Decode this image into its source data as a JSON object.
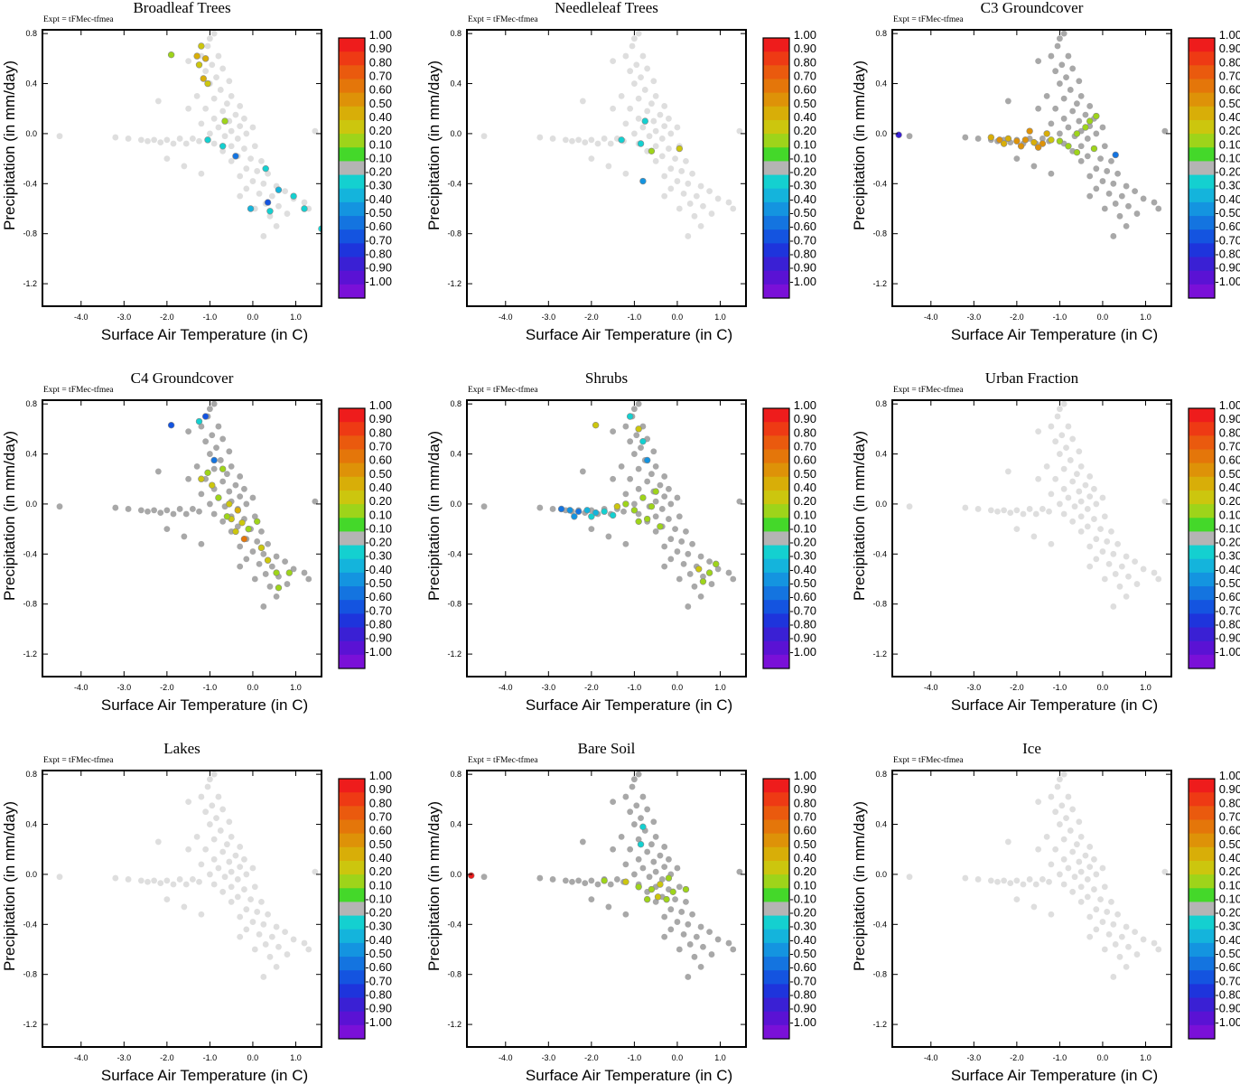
{
  "chart_data": {
    "type": "scatter",
    "figure": "3x3 panel grid of scatter plots colored by correlation value",
    "common": {
      "expt_label": "Expt = tFMec-tfmea",
      "xlabel": "Surface Air Temperature (in C)",
      "ylabel": "Precipitation (in mm/day)",
      "xlim": [
        -4.9,
        1.6
      ],
      "ylim": [
        -1.38,
        0.83
      ],
      "xticks": [
        -4.0,
        -3.0,
        -2.0,
        -1.0,
        0.0,
        1.0
      ],
      "xtick_labels": [
        "-4.0",
        "-3.0",
        "-2.0",
        "-1.0",
        "0.0",
        "1.0"
      ],
      "yticks": [
        0.8,
        0.4,
        0.0,
        -0.4,
        -0.8,
        -1.2
      ],
      "ytick_labels": [
        "0.8",
        "0.4",
        "0.0",
        "-0.4",
        "-0.8",
        "-1.2"
      ],
      "colorbar": {
        "labels": [
          "1.00",
          "0.90",
          "0.80",
          "0.70",
          "0.60",
          "0.50",
          "0.40",
          "0.20",
          "0.10",
          "-0.10",
          "-0.20",
          "-0.30",
          "-0.40",
          "-0.50",
          "-0.60",
          "-0.70",
          "-0.80",
          "-0.90",
          "-1.00"
        ],
        "colors": [
          "#ee1c1c",
          "#ee3a14",
          "#ea5a0e",
          "#e4760a",
          "#de9208",
          "#d8ae08",
          "#ccc60e",
          "#9ed41a",
          "#44d82a",
          "#b4b4b4",
          "#14d0d0",
          "#14b4dc",
          "#1494e0",
          "#1474e0",
          "#1454e0",
          "#1e34dc",
          "#3a20d4",
          "#5a12d4",
          "#7a10d8"
        ]
      }
    },
    "base_cloud": [
      {
        "x": -1.0,
        "y": 0.76
      },
      {
        "x": -0.9,
        "y": 0.8
      },
      {
        "x": -1.05,
        "y": 0.7
      },
      {
        "x": -0.8,
        "y": 0.62
      },
      {
        "x": -1.2,
        "y": 0.62
      },
      {
        "x": -0.95,
        "y": 0.55
      },
      {
        "x": -0.7,
        "y": 0.52
      },
      {
        "x": -1.1,
        "y": 0.5
      },
      {
        "x": -0.85,
        "y": 0.45
      },
      {
        "x": -0.55,
        "y": 0.42
      },
      {
        "x": -1.0,
        "y": 0.4
      },
      {
        "x": -0.75,
        "y": 0.35
      },
      {
        "x": -1.3,
        "y": 0.3
      },
      {
        "x": -0.5,
        "y": 0.3
      },
      {
        "x": -0.9,
        "y": 0.28
      },
      {
        "x": -0.6,
        "y": 0.24
      },
      {
        "x": -0.3,
        "y": 0.22
      },
      {
        "x": -1.1,
        "y": 0.2
      },
      {
        "x": -0.7,
        "y": 0.18
      },
      {
        "x": -0.4,
        "y": 0.15
      },
      {
        "x": -0.9,
        "y": 0.12
      },
      {
        "x": -0.2,
        "y": 0.12
      },
      {
        "x": -0.55,
        "y": 0.1
      },
      {
        "x": -1.2,
        "y": 0.08
      },
      {
        "x": -0.3,
        "y": 0.06
      },
      {
        "x": -0.8,
        "y": 0.05
      },
      {
        "x": 0.0,
        "y": 0.05
      },
      {
        "x": -0.5,
        "y": 0.02
      },
      {
        "x": -1.0,
        "y": 0.0
      },
      {
        "x": -0.15,
        "y": 0.0
      },
      {
        "x": -0.65,
        "y": -0.02
      },
      {
        "x": -0.35,
        "y": -0.04
      },
      {
        "x": -1.4,
        "y": -0.04
      },
      {
        "x": -1.7,
        "y": -0.04
      },
      {
        "x": -2.0,
        "y": -0.05
      },
      {
        "x": -2.3,
        "y": -0.05
      },
      {
        "x": -2.6,
        "y": -0.05
      },
      {
        "x": -1.55,
        "y": -0.08
      },
      {
        "x": -1.85,
        "y": -0.08
      },
      {
        "x": -2.15,
        "y": -0.07
      },
      {
        "x": -2.45,
        "y": -0.06
      },
      {
        "x": -1.25,
        "y": -0.06
      },
      {
        "x": -0.9,
        "y": -0.08
      },
      {
        "x": -0.5,
        "y": -0.1
      },
      {
        "x": -0.2,
        "y": -0.12
      },
      {
        "x": 0.05,
        "y": -0.1
      },
      {
        "x": -0.7,
        "y": -0.14
      },
      {
        "x": -0.35,
        "y": -0.18
      },
      {
        "x": -0.05,
        "y": -0.2
      },
      {
        "x": 0.2,
        "y": -0.22
      },
      {
        "x": -0.5,
        "y": -0.22
      },
      {
        "x": -0.15,
        "y": -0.28
      },
      {
        "x": 0.1,
        "y": -0.3
      },
      {
        "x": 0.35,
        "y": -0.32
      },
      {
        "x": -0.3,
        "y": -0.34
      },
      {
        "x": 0.0,
        "y": -0.38
      },
      {
        "x": 0.25,
        "y": -0.4
      },
      {
        "x": 0.55,
        "y": -0.42
      },
      {
        "x": -0.15,
        "y": -0.44
      },
      {
        "x": 0.15,
        "y": -0.48
      },
      {
        "x": 0.45,
        "y": -0.5
      },
      {
        "x": 0.75,
        "y": -0.46
      },
      {
        "x": -0.3,
        "y": -0.5
      },
      {
        "x": 0.3,
        "y": -0.56
      },
      {
        "x": 0.6,
        "y": -0.58
      },
      {
        "x": 0.95,
        "y": -0.52
      },
      {
        "x": 1.2,
        "y": -0.55
      },
      {
        "x": 0.05,
        "y": -0.6
      },
      {
        "x": 0.4,
        "y": -0.66
      },
      {
        "x": 0.8,
        "y": -0.64
      },
      {
        "x": 1.3,
        "y": -0.6
      },
      {
        "x": 0.55,
        "y": -0.74
      },
      {
        "x": 0.25,
        "y": -0.82
      },
      {
        "x": -1.5,
        "y": 0.58
      },
      {
        "x": -2.2,
        "y": 0.26
      },
      {
        "x": -2.0,
        "y": -0.2
      },
      {
        "x": -1.6,
        "y": -0.26
      },
      {
        "x": -1.2,
        "y": -0.32
      },
      {
        "x": -1.5,
        "y": 0.2
      },
      {
        "x": 1.45,
        "y": 0.02
      },
      {
        "x": -4.5,
        "y": -0.02
      },
      {
        "x": -3.2,
        "y": -0.03
      },
      {
        "x": -2.9,
        "y": -0.04
      }
    ],
    "panels": [
      {
        "title": "Broadleaf Trees",
        "points": [
          {
            "x": -1.2,
            "y": 0.7,
            "v": 0.4
          },
          {
            "x": -1.3,
            "y": 0.62,
            "v": 0.45
          },
          {
            "x": -1.1,
            "y": 0.6,
            "v": 0.45
          },
          {
            "x": -1.25,
            "y": 0.55,
            "v": 0.3
          },
          {
            "x": -1.15,
            "y": 0.44,
            "v": 0.45
          },
          {
            "x": -1.05,
            "y": 0.4,
            "v": 0.3
          },
          {
            "x": -1.9,
            "y": 0.63,
            "v": 0.15
          },
          {
            "x": -0.65,
            "y": 0.1,
            "v": 0.15
          },
          {
            "x": -1.05,
            "y": -0.05,
            "v": -0.25
          },
          {
            "x": -0.7,
            "y": -0.1,
            "v": -0.25
          },
          {
            "x": -0.4,
            "y": -0.18,
            "v": -0.55
          },
          {
            "x": 0.3,
            "y": -0.28,
            "v": -0.25
          },
          {
            "x": 0.6,
            "y": -0.45,
            "v": -0.35
          },
          {
            "x": 0.95,
            "y": -0.5,
            "v": -0.25
          },
          {
            "x": 1.2,
            "y": -0.6,
            "v": -0.25
          },
          {
            "x": 0.35,
            "y": -0.55,
            "v": -0.6
          },
          {
            "x": 0.4,
            "y": -0.62,
            "v": -0.25
          },
          {
            "x": 1.6,
            "y": -0.76,
            "v": -0.25
          },
          {
            "x": -0.05,
            "y": -0.6,
            "v": -0.3
          }
        ]
      },
      {
        "title": "Needleleaf Trees",
        "points": [
          {
            "x": -1.3,
            "y": -0.05,
            "v": -0.25
          },
          {
            "x": -0.85,
            "y": -0.08,
            "v": -0.25
          },
          {
            "x": -0.75,
            "y": 0.1,
            "v": -0.25
          },
          {
            "x": -0.8,
            "y": -0.38,
            "v": -0.45
          },
          {
            "x": -0.6,
            "y": -0.14,
            "v": 0.15
          },
          {
            "x": 0.05,
            "y": -0.12,
            "v": 0.3
          }
        ]
      },
      {
        "title": "C3 Groundcover",
        "points": [
          {
            "x": -2.6,
            "y": -0.03,
            "v": 0.45
          },
          {
            "x": -2.4,
            "y": -0.05,
            "v": 0.6
          },
          {
            "x": -2.2,
            "y": -0.04,
            "v": 0.5
          },
          {
            "x": -2.0,
            "y": -0.06,
            "v": 0.55
          },
          {
            "x": -1.8,
            "y": -0.05,
            "v": 0.6
          },
          {
            "x": -1.6,
            "y": -0.07,
            "v": 0.5
          },
          {
            "x": -1.4,
            "y": -0.08,
            "v": 0.55
          },
          {
            "x": -1.2,
            "y": -0.05,
            "v": 0.4
          },
          {
            "x": -1.0,
            "y": -0.06,
            "v": 0.15
          },
          {
            "x": -2.3,
            "y": -0.08,
            "v": 0.5
          },
          {
            "x": -1.9,
            "y": -0.1,
            "v": 0.55
          },
          {
            "x": -1.5,
            "y": -0.11,
            "v": 0.6
          },
          {
            "x": -1.7,
            "y": 0.02,
            "v": 0.6
          },
          {
            "x": -1.3,
            "y": 0.0,
            "v": 0.5
          },
          {
            "x": -0.8,
            "y": -0.1,
            "v": 0.15
          },
          {
            "x": -0.6,
            "y": 0.0,
            "v": 0.15
          },
          {
            "x": -0.4,
            "y": 0.05,
            "v": 0.15
          },
          {
            "x": -0.3,
            "y": 0.1,
            "v": 0.15
          },
          {
            "x": -0.6,
            "y": -0.15,
            "v": 0.15
          },
          {
            "x": -0.15,
            "y": 0.14,
            "v": 0.15
          },
          {
            "x": -0.2,
            "y": -0.12,
            "v": 0.15
          },
          {
            "x": 0.3,
            "y": -0.17,
            "v": -0.55
          },
          {
            "x": -4.75,
            "y": -0.01,
            "v": -0.8
          }
        ]
      },
      {
        "title": "C4 Groundcover",
        "points": [
          {
            "x": -1.9,
            "y": 0.63,
            "v": -0.65
          },
          {
            "x": -1.25,
            "y": 0.66,
            "v": -0.25
          },
          {
            "x": -1.1,
            "y": 0.7,
            "v": -0.65
          },
          {
            "x": -0.9,
            "y": 0.35,
            "v": -0.55
          },
          {
            "x": -1.05,
            "y": 0.25,
            "v": 0.15
          },
          {
            "x": -1.2,
            "y": 0.2,
            "v": 0.3
          },
          {
            "x": -0.95,
            "y": 0.15,
            "v": 0.35
          },
          {
            "x": -0.8,
            "y": 0.05,
            "v": 0.15
          },
          {
            "x": -0.55,
            "y": 0.0,
            "v": 0.3
          },
          {
            "x": -0.35,
            "y": -0.05,
            "v": 0.45
          },
          {
            "x": -0.5,
            "y": -0.12,
            "v": 0.4
          },
          {
            "x": -0.25,
            "y": -0.15,
            "v": 0.3
          },
          {
            "x": -0.4,
            "y": -0.22,
            "v": 0.35
          },
          {
            "x": -0.2,
            "y": -0.28,
            "v": 0.7
          },
          {
            "x": 0.1,
            "y": -0.14,
            "v": 0.15
          },
          {
            "x": -0.6,
            "y": -0.1,
            "v": 0.15
          },
          {
            "x": 0.2,
            "y": -0.35,
            "v": 0.3
          },
          {
            "x": 0.35,
            "y": -0.45,
            "v": 0.35
          },
          {
            "x": 0.55,
            "y": -0.55,
            "v": 0.15
          },
          {
            "x": 0.85,
            "y": -0.55,
            "v": 0.15
          },
          {
            "x": 0.6,
            "y": -0.67,
            "v": 0.15
          },
          {
            "x": -0.7,
            "y": 0.28,
            "v": 0.15
          },
          {
            "x": -0.1,
            "y": -0.2,
            "v": 0.15
          }
        ]
      },
      {
        "title": "Shrubs",
        "points": [
          {
            "x": -2.7,
            "y": -0.04,
            "v": -0.55
          },
          {
            "x": -2.5,
            "y": -0.05,
            "v": -0.45
          },
          {
            "x": -2.3,
            "y": -0.06,
            "v": -0.5
          },
          {
            "x": -2.1,
            "y": -0.05,
            "v": -0.35
          },
          {
            "x": -1.9,
            "y": -0.07,
            "v": -0.3
          },
          {
            "x": -1.7,
            "y": -0.06,
            "v": -0.25
          },
          {
            "x": -2.4,
            "y": -0.1,
            "v": -0.45
          },
          {
            "x": -2.0,
            "y": -0.1,
            "v": -0.25
          },
          {
            "x": -1.5,
            "y": -0.09,
            "v": -0.25
          },
          {
            "x": -1.9,
            "y": 0.63,
            "v": 0.4
          },
          {
            "x": -1.1,
            "y": 0.7,
            "v": -0.25
          },
          {
            "x": -0.8,
            "y": 0.5,
            "v": -0.25
          },
          {
            "x": -0.7,
            "y": 0.35,
            "v": -0.45
          },
          {
            "x": -0.9,
            "y": 0.6,
            "v": 0.3
          },
          {
            "x": -1.2,
            "y": 0.0,
            "v": 0.15
          },
          {
            "x": -1.0,
            "y": -0.05,
            "v": 0.15
          },
          {
            "x": -0.8,
            "y": 0.05,
            "v": 0.15
          },
          {
            "x": -0.6,
            "y": -0.02,
            "v": 0.15
          },
          {
            "x": -0.7,
            "y": -0.12,
            "v": 0.15
          },
          {
            "x": -0.5,
            "y": 0.1,
            "v": 0.15
          },
          {
            "x": -0.9,
            "y": -0.14,
            "v": 0.15
          },
          {
            "x": -0.4,
            "y": -0.18,
            "v": 0.15
          },
          {
            "x": -1.4,
            "y": -0.02,
            "v": 0.3
          },
          {
            "x": 0.5,
            "y": -0.52,
            "v": 0.3
          },
          {
            "x": 0.6,
            "y": -0.62,
            "v": 0.15
          },
          {
            "x": 0.9,
            "y": -0.48,
            "v": 0.15
          },
          {
            "x": 0.75,
            "y": -0.55,
            "v": 0.15
          }
        ]
      },
      {
        "title": "Urban Fraction",
        "points": []
      },
      {
        "title": "Lakes",
        "points": []
      },
      {
        "title": "Bare Soil",
        "points": [
          {
            "x": -4.8,
            "y": -0.01,
            "v": 0.95
          },
          {
            "x": -0.8,
            "y": 0.38,
            "v": -0.25
          },
          {
            "x": -0.85,
            "y": 0.24,
            "v": -0.25
          },
          {
            "x": -1.7,
            "y": -0.05,
            "v": 0.15
          },
          {
            "x": -1.2,
            "y": -0.06,
            "v": 0.3
          },
          {
            "x": -0.9,
            "y": -0.1,
            "v": 0.15
          },
          {
            "x": -0.6,
            "y": -0.12,
            "v": 0.15
          },
          {
            "x": -0.4,
            "y": -0.08,
            "v": 0.3
          },
          {
            "x": -0.2,
            "y": -0.03,
            "v": 0.15
          },
          {
            "x": -0.1,
            "y": -0.14,
            "v": 0.15
          },
          {
            "x": 0.2,
            "y": -0.12,
            "v": 0.15
          },
          {
            "x": -0.7,
            "y": -0.2,
            "v": 0.15
          },
          {
            "x": -0.45,
            "y": -0.18,
            "v": 0.4
          },
          {
            "x": -0.25,
            "y": -0.2,
            "v": 0.15
          }
        ]
      },
      {
        "title": "Ice",
        "points": []
      }
    ]
  }
}
